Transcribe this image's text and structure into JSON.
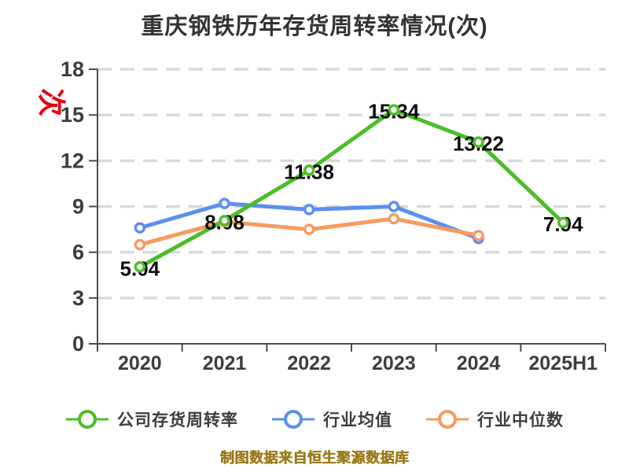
{
  "title": "重庆钢铁历年存货周转率情况(次)",
  "y_axis_unit": "次",
  "source_note": "制图数据来自恒生聚源数据库",
  "chart_data": {
    "type": "line",
    "title": "重庆钢铁历年存货周转率情况(次)",
    "categories": [
      "2020",
      "2021",
      "2022",
      "2023",
      "2024",
      "2025H1"
    ],
    "series": [
      {
        "name": "公司存货周转率",
        "color": "#4bbe27",
        "values": [
          5.04,
          8.08,
          11.38,
          15.34,
          13.22,
          7.94
        ],
        "show_labels": true
      },
      {
        "name": "行业均值",
        "color": "#5b8ff0",
        "values": [
          7.6,
          9.2,
          8.8,
          9.0,
          6.9,
          null
        ],
        "show_labels": false
      },
      {
        "name": "行业中位数",
        "color": "#f79a63",
        "values": [
          6.5,
          8.0,
          7.5,
          8.2,
          7.1,
          null
        ],
        "show_labels": false
      }
    ],
    "ylim": [
      0,
      18
    ],
    "yticks": [
      0,
      3,
      6,
      9,
      12,
      15,
      18
    ],
    "grid": "horizontal-dashed",
    "legend_position": "bottom",
    "colors": {
      "grid": "#d9d9d9",
      "axis": "#4c4c4c",
      "tick_label": "#3d3d3d",
      "value_label": "#0d0d0d",
      "title": "#333333",
      "unit": "#e60012",
      "source": "#9b7b1d"
    }
  }
}
